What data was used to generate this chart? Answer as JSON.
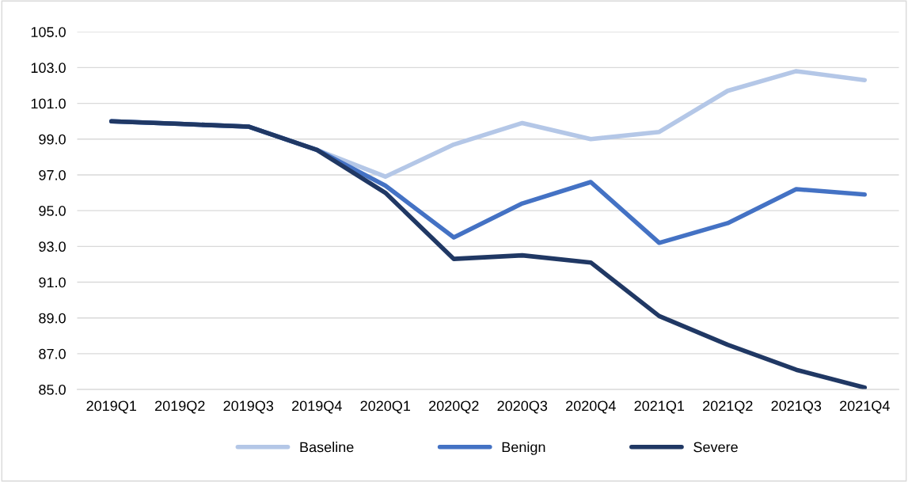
{
  "chart_data": {
    "type": "line",
    "categories": [
      "2019Q1",
      "2019Q2",
      "2019Q3",
      "2019Q4",
      "2020Q1",
      "2020Q2",
      "2020Q3",
      "2020Q4",
      "2021Q1",
      "2021Q2",
      "2021Q3",
      "2021Q4"
    ],
    "series": [
      {
        "name": "Baseline",
        "color": "#b4c7e7",
        "values": [
          100.0,
          99.85,
          99.7,
          98.4,
          96.9,
          98.7,
          99.9,
          99.0,
          99.4,
          101.7,
          102.8,
          102.3
        ]
      },
      {
        "name": "Benign",
        "color": "#4472c4",
        "values": [
          100.0,
          99.85,
          99.7,
          98.4,
          96.4,
          93.5,
          95.4,
          96.6,
          93.2,
          94.3,
          96.2,
          95.9
        ]
      },
      {
        "name": "Severe",
        "color": "#203864",
        "values": [
          100.0,
          99.85,
          99.7,
          98.4,
          96.0,
          92.3,
          92.5,
          92.1,
          89.1,
          87.5,
          86.1,
          85.1
        ]
      }
    ],
    "ylim": [
      85,
      105
    ],
    "yticks": [
      {
        "value": 85,
        "label": "85.0"
      },
      {
        "value": 87,
        "label": "87.0"
      },
      {
        "value": 89,
        "label": "89.0"
      },
      {
        "value": 91,
        "label": "91.0"
      },
      {
        "value": 93,
        "label": "93.0"
      },
      {
        "value": 95,
        "label": "95.0"
      },
      {
        "value": 97,
        "label": "97.0"
      },
      {
        "value": 99,
        "label": "99.0"
      },
      {
        "value": 101,
        "label": "101.0"
      },
      {
        "value": 103,
        "label": "103.0"
      },
      {
        "value": 105,
        "label": "105.0"
      }
    ],
    "grid": "y",
    "legend": "bottom",
    "marker": "none",
    "line_style": "solid"
  }
}
